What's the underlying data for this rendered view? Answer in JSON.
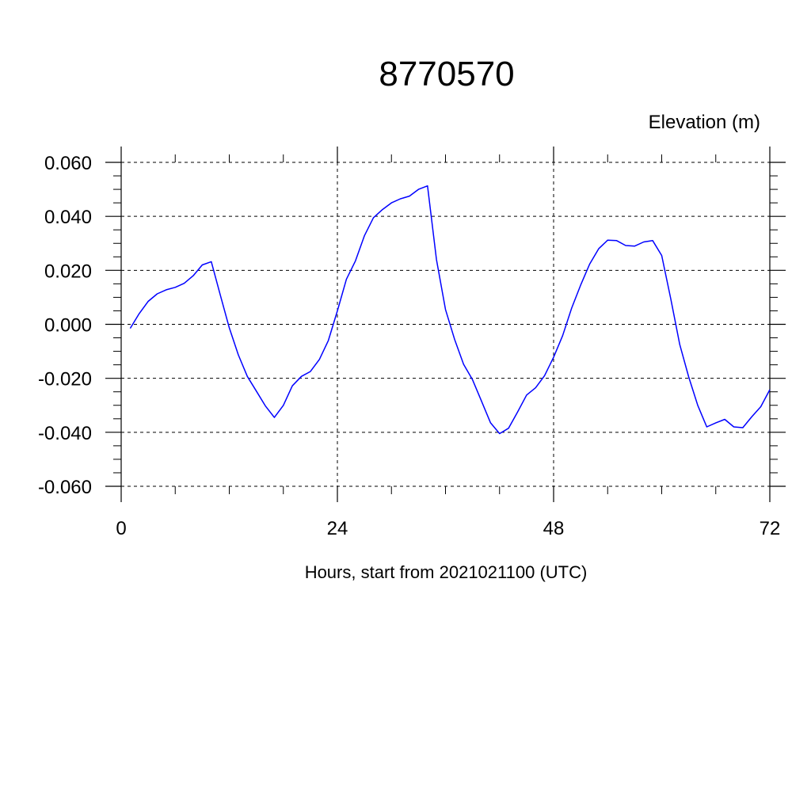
{
  "chart_data": {
    "type": "line",
    "title": "8770570",
    "ylabel_right": "Elevation (m)",
    "xlabel": "Hours, start from 2021021100 (UTC)",
    "xlim": [
      0,
      72
    ],
    "ylim": [
      -0.06,
      0.06
    ],
    "xticks": [
      0,
      24,
      48,
      72
    ],
    "xtick_labels": [
      "0",
      "24",
      "48",
      "72"
    ],
    "yticks": [
      -0.06,
      -0.04,
      -0.02,
      0.0,
      0.02,
      0.04,
      0.06
    ],
    "ytick_labels": [
      "-0.060",
      "-0.040",
      "-0.020",
      "0.000",
      "0.020",
      "0.040",
      "0.060"
    ],
    "grid": true,
    "line_color": "#0000ff",
    "series": [
      {
        "x": [
          1,
          2,
          3,
          4,
          5,
          6,
          7,
          8,
          9,
          10,
          11,
          12,
          13,
          14,
          15,
          16,
          17,
          18,
          19,
          20,
          21,
          22,
          23,
          24,
          25,
          26,
          27,
          28,
          29,
          30,
          31,
          32,
          33,
          34,
          35,
          36,
          37,
          38,
          39,
          40,
          41,
          42,
          43,
          44,
          45,
          46,
          47,
          48,
          49,
          50,
          51,
          52,
          53,
          54,
          55,
          56,
          57,
          58,
          59,
          60,
          61,
          62,
          63,
          64,
          65,
          66,
          67,
          68,
          69,
          70,
          71,
          72
        ],
        "y": [
          -0.0015,
          0.004,
          0.0085,
          0.0113,
          0.0128,
          0.0137,
          0.0152,
          0.018,
          0.022,
          0.0232,
          0.0109,
          -0.0013,
          -0.0113,
          -0.0193,
          -0.0247,
          -0.0302,
          -0.0345,
          -0.03,
          -0.0228,
          -0.0193,
          -0.0175,
          -0.013,
          -0.006,
          0.005,
          0.0167,
          0.0235,
          0.0328,
          0.0395,
          0.0425,
          0.045,
          0.0465,
          0.0475,
          0.05,
          0.0513,
          0.024,
          0.0055,
          -0.0055,
          -0.0148,
          -0.0205,
          -0.0285,
          -0.0365,
          -0.0405,
          -0.0385,
          -0.0325,
          -0.0262,
          -0.0235,
          -0.019,
          -0.0122,
          -0.0042,
          0.006,
          0.0145,
          0.0223,
          0.028,
          0.0312,
          0.031,
          0.0292,
          0.029,
          0.0305,
          0.031,
          0.0255,
          0.0095,
          -0.0075,
          -0.0195,
          -0.03,
          -0.038,
          -0.0365,
          -0.0352,
          -0.038,
          -0.0383,
          -0.0342,
          -0.0305,
          -0.0242
        ]
      }
    ]
  }
}
